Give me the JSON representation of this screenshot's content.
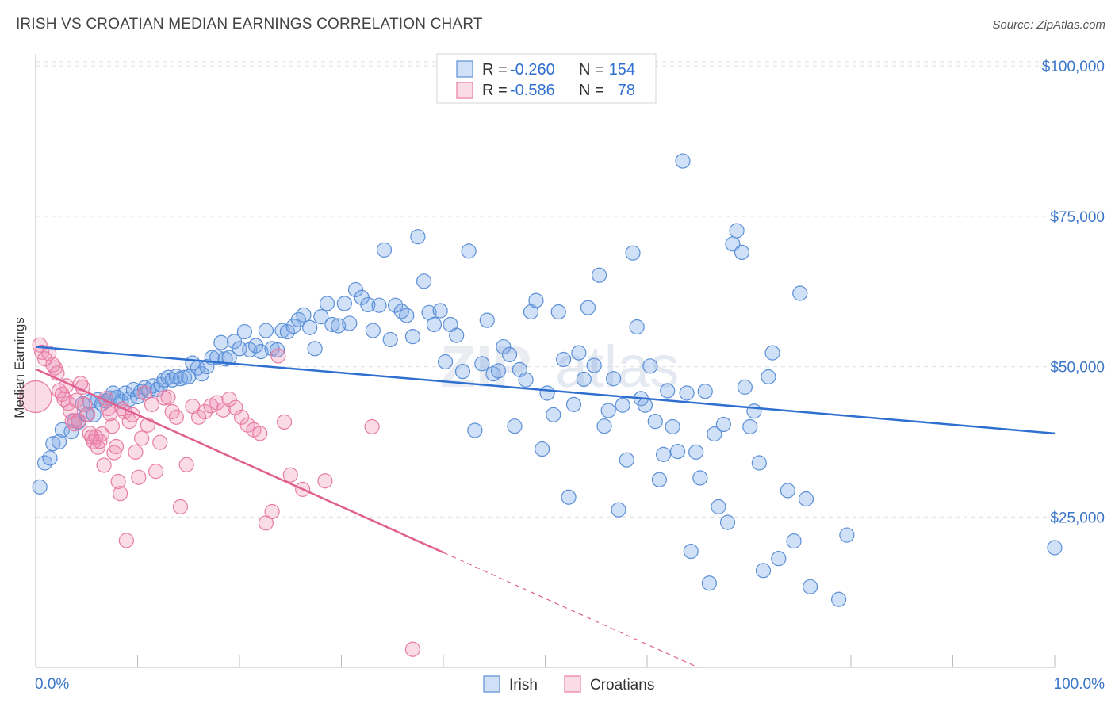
{
  "title": "IRISH VS CROATIAN MEDIAN EARNINGS CORRELATION CHART",
  "source": "Source: ZipAtlas.com",
  "watermark": {
    "part1": "ZIP",
    "part2": "atlas"
  },
  "colors": {
    "irish_fill": "rgba(120,165,230,0.35)",
    "irish_stroke": "#5b8fd8",
    "irish_line": "#2f6fd0",
    "croatian_fill": "rgba(240,140,175,0.30)",
    "croatian_stroke": "#e87ca3",
    "croatian_line": "#e0608f",
    "grid": "#dddddd",
    "axis_text": "#3b76c9"
  },
  "legend": {
    "rows": [
      {
        "r_label": "R =",
        "r_value": "-0.260",
        "n_label": "N =",
        "n_value": "154"
      },
      {
        "r_label": "R =",
        "r_value": "-0.586",
        "n_label": "N =",
        "n_value": "78"
      }
    ]
  },
  "bottom_legend": {
    "items": [
      "Irish",
      "Croatians"
    ]
  },
  "chart_data": {
    "type": "scatter",
    "xlabel": "",
    "ylabel": "Median Earnings",
    "xlim": [
      0,
      100
    ],
    "ylim": [
      0,
      102000
    ],
    "x_tick_labels": [
      "0.0%",
      "100.0%"
    ],
    "y_ticks": [
      25000,
      50000,
      75000,
      100000
    ],
    "y_tick_labels": [
      "$25,000",
      "$50,000",
      "$75,000",
      "$100,000"
    ],
    "grid": true,
    "legend_position": "top-center",
    "series": [
      {
        "name": "Irish",
        "r": -0.26,
        "n": 154,
        "trend": {
          "x0": 0,
          "y0": 53300,
          "x1": 100,
          "y1": 38900
        },
        "points": [
          [
            0.4,
            30000
          ],
          [
            0.9,
            34000
          ],
          [
            1.4,
            34800
          ],
          [
            1.7,
            37200
          ],
          [
            2.3,
            37500
          ],
          [
            2.6,
            39500
          ],
          [
            3.5,
            39200
          ],
          [
            3.8,
            41000
          ],
          [
            4.2,
            40800
          ],
          [
            4.6,
            43800
          ],
          [
            5.0,
            42000
          ],
          [
            5.3,
            44200
          ],
          [
            5.7,
            42000
          ],
          [
            6.1,
            44500
          ],
          [
            6.5,
            43800
          ],
          [
            6.9,
            44300
          ],
          [
            7.3,
            44800
          ],
          [
            7.6,
            45600
          ],
          [
            8.0,
            44900
          ],
          [
            8.4,
            44200
          ],
          [
            8.8,
            45600
          ],
          [
            9.2,
            44600
          ],
          [
            9.6,
            46200
          ],
          [
            10.0,
            45000
          ],
          [
            10.3,
            45800
          ],
          [
            10.7,
            46500
          ],
          [
            11.1,
            46000
          ],
          [
            11.5,
            46800
          ],
          [
            11.9,
            46200
          ],
          [
            12.3,
            47000
          ],
          [
            12.6,
            47800
          ],
          [
            13.0,
            48200
          ],
          [
            13.4,
            47800
          ],
          [
            13.8,
            48400
          ],
          [
            14.2,
            48000
          ],
          [
            14.6,
            48200
          ],
          [
            15.0,
            48300
          ],
          [
            15.4,
            50600
          ],
          [
            15.9,
            49800
          ],
          [
            16.3,
            48800
          ],
          [
            16.8,
            50000
          ],
          [
            17.3,
            51500
          ],
          [
            17.8,
            51600
          ],
          [
            18.2,
            54000
          ],
          [
            18.6,
            51300
          ],
          [
            19.0,
            51500
          ],
          [
            19.5,
            54200
          ],
          [
            20.0,
            53000
          ],
          [
            20.5,
            55800
          ],
          [
            21.0,
            52800
          ],
          [
            21.6,
            53500
          ],
          [
            22.1,
            52500
          ],
          [
            22.6,
            56000
          ],
          [
            23.2,
            53000
          ],
          [
            23.7,
            52800
          ],
          [
            24.2,
            56000
          ],
          [
            24.7,
            55800
          ],
          [
            25.3,
            56700
          ],
          [
            25.8,
            57800
          ],
          [
            26.3,
            58600
          ],
          [
            26.9,
            56500
          ],
          [
            27.4,
            53000
          ],
          [
            28.0,
            58300
          ],
          [
            28.6,
            60500
          ],
          [
            29.1,
            57000
          ],
          [
            29.7,
            56800
          ],
          [
            30.3,
            60500
          ],
          [
            30.8,
            57200
          ],
          [
            31.4,
            62800
          ],
          [
            32.0,
            61500
          ],
          [
            32.6,
            60300
          ],
          [
            33.1,
            56000
          ],
          [
            33.7,
            60200
          ],
          [
            34.2,
            69400
          ],
          [
            34.8,
            54500
          ],
          [
            35.3,
            60200
          ],
          [
            35.9,
            59200
          ],
          [
            36.4,
            58500
          ],
          [
            37.0,
            55000
          ],
          [
            37.5,
            71600
          ],
          [
            38.1,
            64200
          ],
          [
            38.6,
            59000
          ],
          [
            39.1,
            57000
          ],
          [
            39.7,
            59300
          ],
          [
            40.2,
            50800
          ],
          [
            40.7,
            57000
          ],
          [
            41.3,
            55200
          ],
          [
            41.9,
            49200
          ],
          [
            42.5,
            69200
          ],
          [
            43.1,
            39400
          ],
          [
            43.8,
            50500
          ],
          [
            44.3,
            57700
          ],
          [
            44.9,
            48800
          ],
          [
            45.4,
            49300
          ],
          [
            45.9,
            53300
          ],
          [
            46.5,
            52000
          ],
          [
            47.0,
            40100
          ],
          [
            47.5,
            49500
          ],
          [
            48.1,
            47800
          ],
          [
            48.6,
            59100
          ],
          [
            49.1,
            61000
          ],
          [
            49.7,
            36300
          ],
          [
            50.2,
            45600
          ],
          [
            50.8,
            42000
          ],
          [
            51.3,
            59100
          ],
          [
            51.8,
            51200
          ],
          [
            52.3,
            28300
          ],
          [
            52.8,
            43700
          ],
          [
            53.3,
            52300
          ],
          [
            53.8,
            47900
          ],
          [
            54.2,
            59800
          ],
          [
            54.8,
            50200
          ],
          [
            55.3,
            65200
          ],
          [
            55.8,
            40100
          ],
          [
            56.2,
            42700
          ],
          [
            56.7,
            48000
          ],
          [
            57.2,
            26200
          ],
          [
            57.6,
            43600
          ],
          [
            58.0,
            34500
          ],
          [
            58.6,
            68900
          ],
          [
            59.0,
            56600
          ],
          [
            59.4,
            44700
          ],
          [
            59.8,
            43600
          ],
          [
            60.3,
            50100
          ],
          [
            60.8,
            40900
          ],
          [
            61.2,
            31200
          ],
          [
            61.6,
            35400
          ],
          [
            62.0,
            46000
          ],
          [
            62.5,
            40000
          ],
          [
            63.0,
            35900
          ],
          [
            63.5,
            84200
          ],
          [
            63.9,
            45600
          ],
          [
            64.3,
            19300
          ],
          [
            64.8,
            35800
          ],
          [
            65.2,
            31500
          ],
          [
            65.7,
            45900
          ],
          [
            66.1,
            14000
          ],
          [
            66.6,
            38800
          ],
          [
            67.0,
            26700
          ],
          [
            67.5,
            40400
          ],
          [
            67.9,
            24100
          ],
          [
            68.4,
            70400
          ],
          [
            68.8,
            72600
          ],
          [
            69.3,
            69000
          ],
          [
            69.6,
            46600
          ],
          [
            70.1,
            40000
          ],
          [
            70.5,
            42600
          ],
          [
            71.0,
            34000
          ],
          [
            71.4,
            16100
          ],
          [
            71.9,
            48300
          ],
          [
            72.3,
            52300
          ],
          [
            72.9,
            18100
          ],
          [
            73.8,
            29400
          ],
          [
            74.4,
            21000
          ],
          [
            75.0,
            62200
          ],
          [
            75.6,
            28000
          ],
          [
            76.0,
            13400
          ],
          [
            78.8,
            11300
          ],
          [
            79.6,
            22000
          ],
          [
            100.0,
            19900
          ]
        ]
      },
      {
        "name": "Croatians",
        "r": -0.586,
        "n": 78,
        "trend": {
          "x0": 0,
          "y0": 49600,
          "x1": 40,
          "y1": 19100
        },
        "trend_dashed": {
          "x0": 40,
          "y0": 19100,
          "x1": 65,
          "y1": 0
        },
        "points": [
          [
            0.0,
            45000
          ],
          [
            0.4,
            53600
          ],
          [
            0.6,
            52400
          ],
          [
            0.9,
            51300
          ],
          [
            1.3,
            52200
          ],
          [
            1.7,
            50300
          ],
          [
            1.9,
            49800
          ],
          [
            2.1,
            48900
          ],
          [
            2.3,
            46000
          ],
          [
            2.6,
            45400
          ],
          [
            2.8,
            44600
          ],
          [
            3.0,
            46800
          ],
          [
            3.2,
            43900
          ],
          [
            3.4,
            42600
          ],
          [
            3.6,
            41000
          ],
          [
            3.8,
            40500
          ],
          [
            4.0,
            44400
          ],
          [
            4.2,
            41000
          ],
          [
            4.4,
            47200
          ],
          [
            4.6,
            46600
          ],
          [
            4.8,
            43700
          ],
          [
            5.1,
            42100
          ],
          [
            5.3,
            38900
          ],
          [
            5.5,
            38300
          ],
          [
            5.7,
            37500
          ],
          [
            5.9,
            38300
          ],
          [
            6.1,
            36600
          ],
          [
            6.3,
            37600
          ],
          [
            6.5,
            38800
          ],
          [
            6.7,
            33600
          ],
          [
            6.9,
            44700
          ],
          [
            7.1,
            43000
          ],
          [
            7.3,
            42200
          ],
          [
            7.5,
            40100
          ],
          [
            7.7,
            35700
          ],
          [
            7.9,
            36700
          ],
          [
            8.1,
            30900
          ],
          [
            8.3,
            28900
          ],
          [
            8.5,
            43000
          ],
          [
            8.7,
            42500
          ],
          [
            8.9,
            21100
          ],
          [
            9.2,
            40900
          ],
          [
            9.5,
            42000
          ],
          [
            9.8,
            35800
          ],
          [
            10.1,
            31600
          ],
          [
            10.4,
            38100
          ],
          [
            10.7,
            45600
          ],
          [
            11.0,
            40300
          ],
          [
            11.4,
            43700
          ],
          [
            11.8,
            32600
          ],
          [
            12.2,
            37400
          ],
          [
            12.6,
            44800
          ],
          [
            13.0,
            44900
          ],
          [
            13.4,
            42500
          ],
          [
            13.8,
            41600
          ],
          [
            14.2,
            26700
          ],
          [
            14.8,
            33700
          ],
          [
            15.4,
            43400
          ],
          [
            16.0,
            41600
          ],
          [
            16.6,
            42500
          ],
          [
            17.2,
            43500
          ],
          [
            17.8,
            44000
          ],
          [
            18.4,
            42800
          ],
          [
            19.0,
            44600
          ],
          [
            19.6,
            43200
          ],
          [
            20.2,
            41600
          ],
          [
            20.8,
            40300
          ],
          [
            21.4,
            39500
          ],
          [
            22.0,
            38900
          ],
          [
            22.6,
            24000
          ],
          [
            23.2,
            25900
          ],
          [
            23.8,
            51800
          ],
          [
            24.4,
            40800
          ],
          [
            25.0,
            32000
          ],
          [
            26.2,
            29600
          ],
          [
            28.4,
            31000
          ],
          [
            33.0,
            40000
          ],
          [
            37.0,
            3000
          ]
        ]
      }
    ]
  }
}
